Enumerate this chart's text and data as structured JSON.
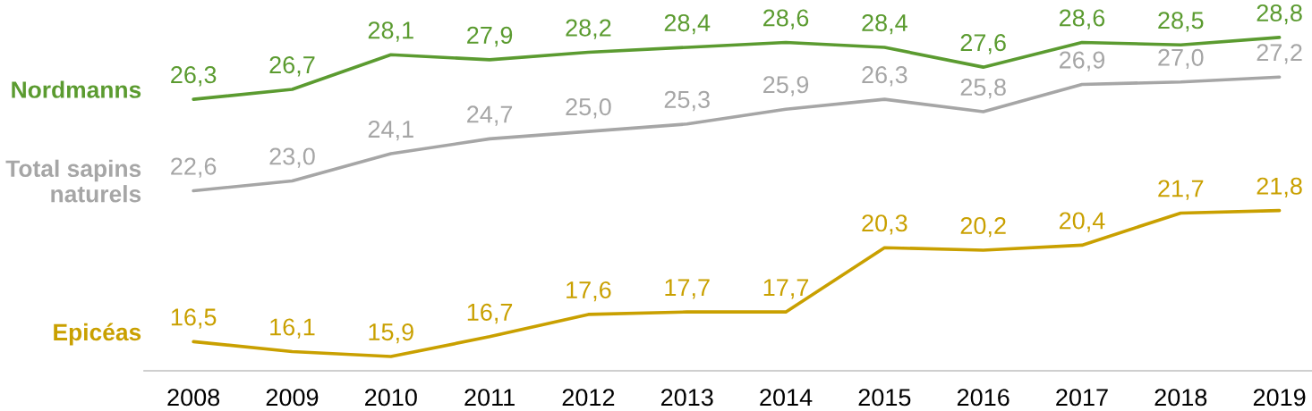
{
  "chart_data": {
    "type": "line",
    "categories": [
      "2008",
      "2009",
      "2010",
      "2011",
      "2012",
      "2013",
      "2014",
      "2015",
      "2016",
      "2017",
      "2018",
      "2019"
    ],
    "series": [
      {
        "name": "Nordmanns",
        "color": "#5b9b30",
        "values": [
          26.3,
          26.7,
          28.1,
          27.9,
          28.2,
          28.4,
          28.6,
          28.4,
          27.6,
          28.6,
          28.5,
          28.8
        ],
        "value_labels": [
          "26,3",
          "26,7",
          "28,1",
          "27,9",
          "28,2",
          "28,4",
          "28,6",
          "28,4",
          "27,6",
          "28,6",
          "28,5",
          "28,8"
        ]
      },
      {
        "name": "Total sapins naturels",
        "color": "#a6a6a6",
        "values": [
          22.6,
          23.0,
          24.1,
          24.7,
          25.0,
          25.3,
          25.9,
          26.3,
          25.8,
          26.9,
          27.0,
          27.2
        ],
        "value_labels": [
          "22,6",
          "23,0",
          "24,1",
          "24,7",
          "25,0",
          "25,3",
          "25,9",
          "26,3",
          "25,8",
          "26,9",
          "27,0",
          "27,2"
        ]
      },
      {
        "name": "Epicéas",
        "color": "#c9a000",
        "values": [
          16.5,
          16.1,
          15.9,
          16.7,
          17.6,
          17.7,
          17.7,
          20.3,
          20.2,
          20.4,
          21.7,
          21.8
        ],
        "value_labels": [
          "16,5",
          "16,1",
          "15,9",
          "16,7",
          "17,6",
          "17,7",
          "17,7",
          "20,3",
          "20,2",
          "20,4",
          "21,7",
          "21,8"
        ]
      }
    ],
    "tick_labels": "x",
    "line_style": "solid"
  }
}
